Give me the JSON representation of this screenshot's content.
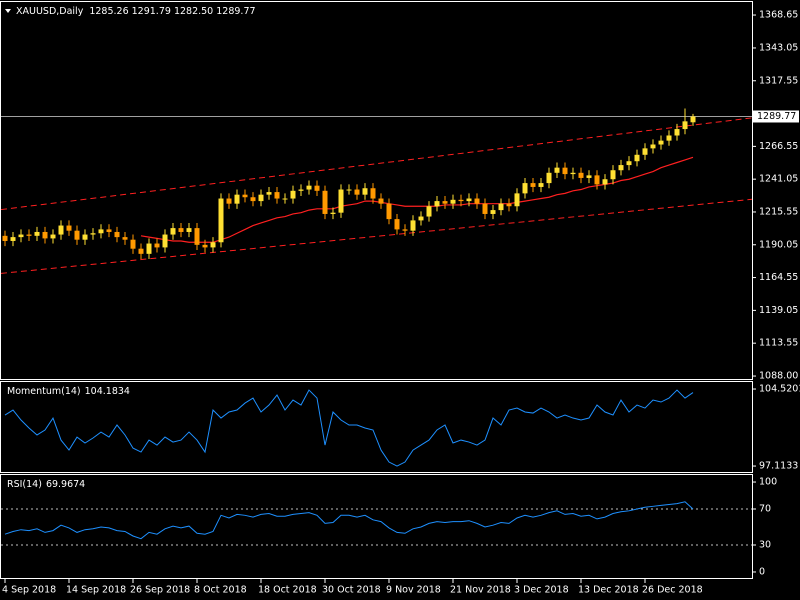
{
  "chart_data": [
    {
      "type": "candlestick",
      "title": "XAUUSD,Daily",
      "header": "1285.26 1291.79 1282.50 1289.77",
      "categories": [
        "4 Sep 2018",
        null,
        null,
        null,
        null,
        null,
        null,
        null,
        "14 Sep 2018",
        null,
        null,
        null,
        null,
        null,
        null,
        null,
        "26 Sep 2018",
        null,
        null,
        null,
        null,
        null,
        null,
        null,
        "8 Oct 2018",
        null,
        null,
        null,
        null,
        null,
        null,
        null,
        "18 Oct 2018",
        null,
        null,
        null,
        null,
        null,
        null,
        null,
        "30 Oct 2018",
        null,
        null,
        null,
        null,
        null,
        null,
        null,
        "9 Nov 2018",
        null,
        null,
        null,
        null,
        null,
        null,
        null,
        "21 Nov 2018",
        null,
        null,
        null,
        null,
        null,
        null,
        null,
        "3 Dec 2018",
        null,
        null,
        null,
        null,
        null,
        null,
        null,
        "13 Dec 2018",
        null,
        null,
        null,
        null,
        null,
        null,
        null,
        "26 Dec 2018",
        null,
        null,
        null,
        null,
        null,
        null
      ],
      "open": [
        1197,
        1193,
        1196,
        1198,
        1197,
        1200,
        1195,
        1198,
        1205,
        1201,
        1194,
        1198,
        1199,
        1202,
        1200,
        1196,
        1194,
        1187,
        1183,
        1191,
        1188,
        1198,
        1203,
        1200,
        1203,
        1190,
        1188,
        1192,
        1226,
        1222,
        1229,
        1227,
        1224,
        1229,
        1231,
        1226,
        1226,
        1232,
        1233,
        1236,
        1232,
        1214,
        1215,
        1233,
        1233,
        1229,
        1234,
        1226,
        1222,
        1210,
        1202,
        1201,
        1209,
        1212,
        1220,
        1224,
        1222,
        1225,
        1224,
        1226,
        1222,
        1214,
        1217,
        1222,
        1220,
        1230,
        1238,
        1235,
        1238,
        1246,
        1250,
        1245,
        1246,
        1242,
        1244,
        1237,
        1241,
        1248,
        1252,
        1255,
        1260,
        1265,
        1268,
        1271,
        1275,
        1280,
        1285.26
      ],
      "high": [
        1201,
        1200,
        1202,
        1202,
        1204,
        1204,
        1202,
        1209,
        1209,
        1205,
        1202,
        1203,
        1206,
        1206,
        1204,
        1200,
        1198,
        1191,
        1195,
        1195,
        1202,
        1207,
        1207,
        1207,
        1207,
        1194,
        1196,
        1230,
        1230,
        1233,
        1233,
        1231,
        1233,
        1235,
        1235,
        1230,
        1236,
        1237,
        1240,
        1240,
        1236,
        1219,
        1237,
        1237,
        1237,
        1238,
        1238,
        1230,
        1226,
        1214,
        1206,
        1213,
        1216,
        1224,
        1228,
        1228,
        1229,
        1229,
        1230,
        1230,
        1226,
        1221,
        1226,
        1226,
        1234,
        1242,
        1242,
        1242,
        1250,
        1254,
        1254,
        1250,
        1250,
        1248,
        1248,
        1245,
        1252,
        1256,
        1259,
        1264,
        1269,
        1272,
        1275,
        1279,
        1284,
        1296,
        1291.79
      ],
      "low": [
        1189,
        1189,
        1192,
        1193,
        1193,
        1191,
        1191,
        1194,
        1197,
        1190,
        1190,
        1194,
        1195,
        1196,
        1192,
        1190,
        1183,
        1179,
        1179,
        1184,
        1184,
        1194,
        1196,
        1196,
        1186,
        1184,
        1184,
        1188,
        1218,
        1218,
        1223,
        1220,
        1220,
        1225,
        1222,
        1222,
        1222,
        1228,
        1229,
        1228,
        1210,
        1210,
        1211,
        1229,
        1225,
        1225,
        1222,
        1218,
        1206,
        1198,
        1197,
        1197,
        1205,
        1208,
        1216,
        1218,
        1218,
        1220,
        1220,
        1218,
        1210,
        1210,
        1213,
        1216,
        1216,
        1226,
        1231,
        1231,
        1234,
        1242,
        1241,
        1241,
        1238,
        1238,
        1233,
        1233,
        1237,
        1244,
        1248,
        1251,
        1256,
        1261,
        1264,
        1267,
        1271,
        1276,
        1282.5
      ],
      "close": [
        1193,
        1196,
        1198,
        1197,
        1200,
        1195,
        1198,
        1205,
        1201,
        1194,
        1198,
        1199,
        1202,
        1200,
        1196,
        1194,
        1187,
        1183,
        1191,
        1188,
        1198,
        1203,
        1200,
        1203,
        1190,
        1188,
        1192,
        1226,
        1222,
        1229,
        1227,
        1224,
        1229,
        1231,
        1226,
        1226,
        1232,
        1233,
        1236,
        1232,
        1214,
        1215,
        1233,
        1233,
        1229,
        1234,
        1226,
        1222,
        1210,
        1202,
        1201,
        1209,
        1212,
        1220,
        1224,
        1222,
        1225,
        1224,
        1226,
        1222,
        1214,
        1217,
        1222,
        1220,
        1230,
        1238,
        1235,
        1238,
        1246,
        1250,
        1245,
        1246,
        1242,
        1244,
        1237,
        1241,
        1248,
        1252,
        1255,
        1260,
        1265,
        1268,
        1271,
        1275,
        1280,
        1286,
        1289.77
      ],
      "up_color": "#ffe033",
      "down_color": "#ff9900",
      "ma": {
        "color": "#ff2020",
        "values": [
          null,
          null,
          null,
          null,
          null,
          null,
          null,
          null,
          null,
          null,
          null,
          null,
          null,
          null,
          null,
          null,
          null,
          1197,
          1196,
          1195,
          1194,
          1193,
          1193,
          1192,
          1192,
          1192,
          1192,
          1194,
          1196,
          1199,
          1202,
          1205,
          1207,
          1209,
          1211,
          1212,
          1214,
          1215,
          1217,
          1218,
          1218,
          1218,
          1220,
          1221,
          1222,
          1224,
          1224,
          1223,
          1222,
          1221,
          1220,
          1220,
          1220,
          1220,
          1220,
          1221,
          1221,
          1221,
          1222,
          1222,
          1222,
          1222,
          1222,
          1222,
          1223,
          1224,
          1225,
          1226,
          1227,
          1229,
          1230,
          1232,
          1233,
          1235,
          1236,
          1237,
          1238,
          1240,
          1241,
          1243,
          1245,
          1247,
          1250,
          1252,
          1254,
          1256,
          1258
        ]
      },
      "channel": {
        "color": "#ff2020",
        "upper": [
          1217.8,
          1283.1
        ],
        "lower": [
          1168.1,
          1220.9
        ]
      },
      "ylim": [
        1085.7,
        1378.0
      ],
      "yticks": [
        1368.65,
        1343.05,
        1317.55,
        1266.55,
        1241.05,
        1215.55,
        1190.05,
        1164.55,
        1139.05,
        1113.55,
        {
          "value": 1088,
          "label": "1088.00"
        }
      ]
    },
    {
      "type": "line",
      "title": "Momentum(14)",
      "color": "#1e90ff",
      "values": [
        102.02,
        102.5,
        101.54,
        100.77,
        100.1,
        100.58,
        101.73,
        99.61,
        98.65,
        99.9,
        99.33,
        99.81,
        100.38,
        99.9,
        101.06,
        100.1,
        98.84,
        98.46,
        99.61,
        99.13,
        99.9,
        99.42,
        99.61,
        100.38,
        99.61,
        98.46,
        102.5,
        101.73,
        102.31,
        102.5,
        103.17,
        103.65,
        102.31,
        102.98,
        103.94,
        102.5,
        103.46,
        102.98,
        104.42,
        103.65,
        99.13,
        102.31,
        101.54,
        101.06,
        101.06,
        100.77,
        100.58,
        98.65,
        97.5,
        97.11,
        97.5,
        98.65,
        99.13,
        99.61,
        100.58,
        101.06,
        99.33,
        99.61,
        99.42,
        99.13,
        99.61,
        101.73,
        101.06,
        102.5,
        102.69,
        102.31,
        102.21,
        102.69,
        102.31,
        101.73,
        102.02,
        101.73,
        101.54,
        101.73,
        102.98,
        102.31,
        102.02,
        103.46,
        102.31,
        102.98,
        102.69,
        103.46,
        103.27,
        103.65,
        104.42,
        103.65,
        104.1834
      ],
      "ylim": [
        96.54,
        105.1
      ],
      "yticks": [
        104.5201,
        97.1133
      ]
    },
    {
      "type": "line",
      "title": "RSI(14)",
      "color": "#1e90ff",
      "values": [
        42,
        45,
        47,
        46,
        48,
        44,
        46,
        52,
        49,
        44,
        47,
        48,
        50,
        49,
        46,
        45,
        40,
        37,
        44,
        42,
        48,
        51,
        49,
        51,
        43,
        42,
        45,
        63,
        60,
        64,
        63,
        61,
        64,
        65,
        62,
        62,
        64,
        65,
        66,
        63,
        54,
        55,
        63,
        63,
        61,
        63,
        58,
        56,
        49,
        44,
        43,
        48,
        50,
        54,
        56,
        55,
        56,
        56,
        57,
        54,
        50,
        52,
        55,
        54,
        60,
        63,
        61,
        63,
        66,
        68,
        64,
        65,
        62,
        63,
        59,
        61,
        65,
        67,
        68,
        70,
        72,
        73,
        74,
        75,
        76,
        78,
        69.9674
      ],
      "ylim": [
        -6.7,
        106.7
      ],
      "yticks": [
        100,
        70,
        30,
        0
      ],
      "levels": [
        70,
        30
      ],
      "level_color": "#c0c0c0"
    }
  ]
}
